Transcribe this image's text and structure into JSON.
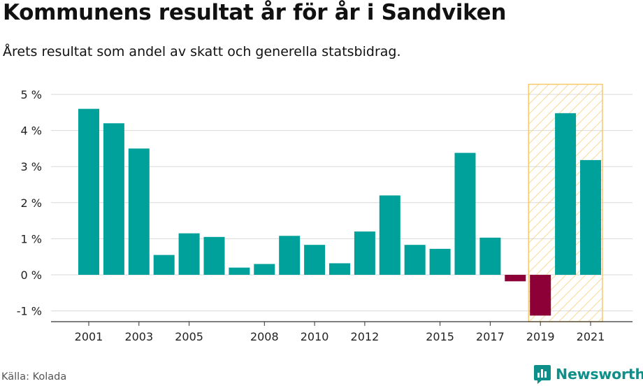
{
  "title": "Kommunens resultat år för år i Sandviken",
  "subtitle": "Årets resultat som andel av skatt och generella statsbidrag.",
  "source": "Källa: Kolada",
  "brand": {
    "name": "Newsworthy",
    "icon": "newsworthy-logo-icon",
    "color": "#0f8f8a"
  },
  "colors": {
    "positive": "#00a19a",
    "negative": "#8c0037",
    "highlight": "#f7c96b",
    "grid": "#d9d9d9"
  },
  "chart_data": {
    "type": "bar",
    "title": "Kommunens resultat år för år i Sandviken",
    "subtitle": "Årets resultat som andel av skatt och generella statsbidrag.",
    "xlabel": "",
    "ylabel": "",
    "unit": "%",
    "ylim": [
      -1.2,
      5.3
    ],
    "yticks": [
      -1,
      0,
      1,
      2,
      3,
      4,
      5
    ],
    "ytick_labels": [
      "-1 %",
      "0 %",
      "1 %",
      "2 %",
      "3 %",
      "4 %",
      "5 %"
    ],
    "xtick_labels": [
      "2001",
      "2003",
      "2005",
      "2008",
      "2010",
      "2012",
      "2015",
      "2017",
      "2019",
      "2021"
    ],
    "categories": [
      2001,
      2002,
      2003,
      2004,
      2005,
      2006,
      2007,
      2008,
      2009,
      2010,
      2011,
      2012,
      2013,
      2014,
      2015,
      2016,
      2017,
      2018,
      2019,
      2020,
      2021
    ],
    "values": [
      4.6,
      4.2,
      3.5,
      0.55,
      1.15,
      1.05,
      0.2,
      0.3,
      1.08,
      0.83,
      0.32,
      1.2,
      2.2,
      0.83,
      0.72,
      3.38,
      1.03,
      -0.18,
      -1.13,
      4.48,
      3.18
    ],
    "highlighted_range": [
      2019,
      2021
    ],
    "grid": true
  }
}
